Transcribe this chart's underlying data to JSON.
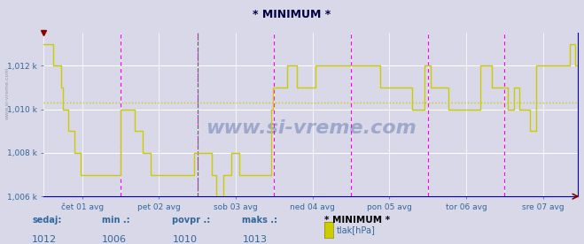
{
  "title": "* MINIMUM *",
  "background_color": "#d8d8e8",
  "plot_bg_color": "#d8d8e8",
  "line_color": "#cccc00",
  "grid_h_color": "#ffffff",
  "grid_v_color": "#ffffff",
  "axis_label_color": "#336699",
  "tick_color": "#336699",
  "avg_line_y": 1010.3,
  "avg_line_color": "#cccc00",
  "magenta_color": "#ff00ff",
  "dashed_black_color": "#666666",
  "ymin": 1006,
  "ymax": 1013.5,
  "yticks": [
    1006,
    1008,
    1010,
    1012
  ],
  "ytick_labels": [
    "1,006 k",
    "1,008 k",
    "1,010 k",
    "1,012 k"
  ],
  "xtick_labels": [
    "čet 01 avg",
    "pet 02 avg",
    "sob 03 avg",
    "ned 04 avg",
    "pon 05 avg",
    "tor 06 avg",
    "sre 07 avg"
  ],
  "watermark": "www.si-vreme.com",
  "bottom_labels": [
    "sedaj:",
    "min .:",
    "povpr .:",
    "maks .:"
  ],
  "bottom_values": [
    "1012",
    "1006",
    "1010",
    "1013"
  ],
  "bottom_special": "* MINIMUM *",
  "legend_label": "tlak[hPa]",
  "legend_color": "#cccc00",
  "n_points": 337,
  "data_values": [
    1013,
    1013,
    1013,
    1013,
    1013,
    1013,
    1012,
    1012,
    1012,
    1012,
    1012,
    1011,
    1010,
    1010,
    1010,
    1009,
    1009,
    1009,
    1009,
    1008,
    1008,
    1008,
    1008,
    1007,
    1007,
    1007,
    1007,
    1007,
    1007,
    1007,
    1007,
    1007,
    1007,
    1007,
    1007,
    1007,
    1007,
    1007,
    1007,
    1007,
    1007,
    1007,
    1007,
    1007,
    1007,
    1007,
    1007,
    1007,
    1010,
    1010,
    1010,
    1010,
    1010,
    1010,
    1010,
    1010,
    1010,
    1009,
    1009,
    1009,
    1009,
    1009,
    1008,
    1008,
    1008,
    1008,
    1008,
    1007,
    1007,
    1007,
    1007,
    1007,
    1007,
    1007,
    1007,
    1007,
    1007,
    1007,
    1007,
    1007,
    1007,
    1007,
    1007,
    1007,
    1007,
    1007,
    1007,
    1007,
    1007,
    1007,
    1007,
    1007,
    1007,
    1007,
    1008,
    1008,
    1008,
    1008,
    1008,
    1008,
    1008,
    1008,
    1008,
    1008,
    1008,
    1007,
    1007,
    1007,
    1006,
    1006,
    1006,
    1006,
    1007,
    1007,
    1007,
    1007,
    1007,
    1008,
    1008,
    1008,
    1008,
    1008,
    1007,
    1007,
    1007,
    1007,
    1007,
    1007,
    1007,
    1007,
    1007,
    1007,
    1007,
    1007,
    1007,
    1007,
    1007,
    1007,
    1007,
    1007,
    1007,
    1007,
    1010,
    1011,
    1011,
    1011,
    1011,
    1011,
    1011,
    1011,
    1011,
    1011,
    1012,
    1012,
    1012,
    1012,
    1012,
    1012,
    1011,
    1011,
    1011,
    1011,
    1011,
    1011,
    1011,
    1011,
    1011,
    1011,
    1011,
    1011,
    1012,
    1012,
    1012,
    1012,
    1012,
    1012,
    1012,
    1012,
    1012,
    1012,
    1012,
    1012,
    1012,
    1012,
    1012,
    1012,
    1012,
    1012,
    1012,
    1012,
    1012,
    1012,
    1012,
    1012,
    1012,
    1012,
    1012,
    1012,
    1012,
    1012,
    1012,
    1012,
    1012,
    1012,
    1012,
    1012,
    1012,
    1012,
    1012,
    1012,
    1011,
    1011,
    1011,
    1011,
    1011,
    1011,
    1011,
    1011,
    1011,
    1011,
    1011,
    1011,
    1011,
    1011,
    1011,
    1011,
    1011,
    1011,
    1011,
    1011,
    1010,
    1010,
    1010,
    1010,
    1010,
    1010,
    1010,
    1010,
    1012,
    1012,
    1012,
    1012,
    1011,
    1011,
    1011,
    1011,
    1011,
    1011,
    1011,
    1011,
    1011,
    1011,
    1011,
    1010,
    1010,
    1010,
    1010,
    1010,
    1010,
    1010,
    1010,
    1010,
    1010,
    1010,
    1010,
    1010,
    1010,
    1010,
    1010,
    1010,
    1010,
    1010,
    1010,
    1012,
    1012,
    1012,
    1012,
    1012,
    1012,
    1012,
    1011,
    1011,
    1011,
    1011,
    1011,
    1011,
    1011,
    1011,
    1011,
    1011,
    1010,
    1010,
    1010,
    1010,
    1011,
    1011,
    1011,
    1010,
    1010,
    1010,
    1010,
    1010,
    1010,
    1010,
    1009,
    1009,
    1009,
    1009,
    1012,
    1012,
    1012,
    1012,
    1012,
    1012,
    1012,
    1012,
    1012,
    1012,
    1012,
    1012,
    1012,
    1012,
    1012,
    1012,
    1012,
    1012,
    1012,
    1012,
    1012,
    1013,
    1013,
    1013,
    1012,
    1012,
    1012
  ]
}
